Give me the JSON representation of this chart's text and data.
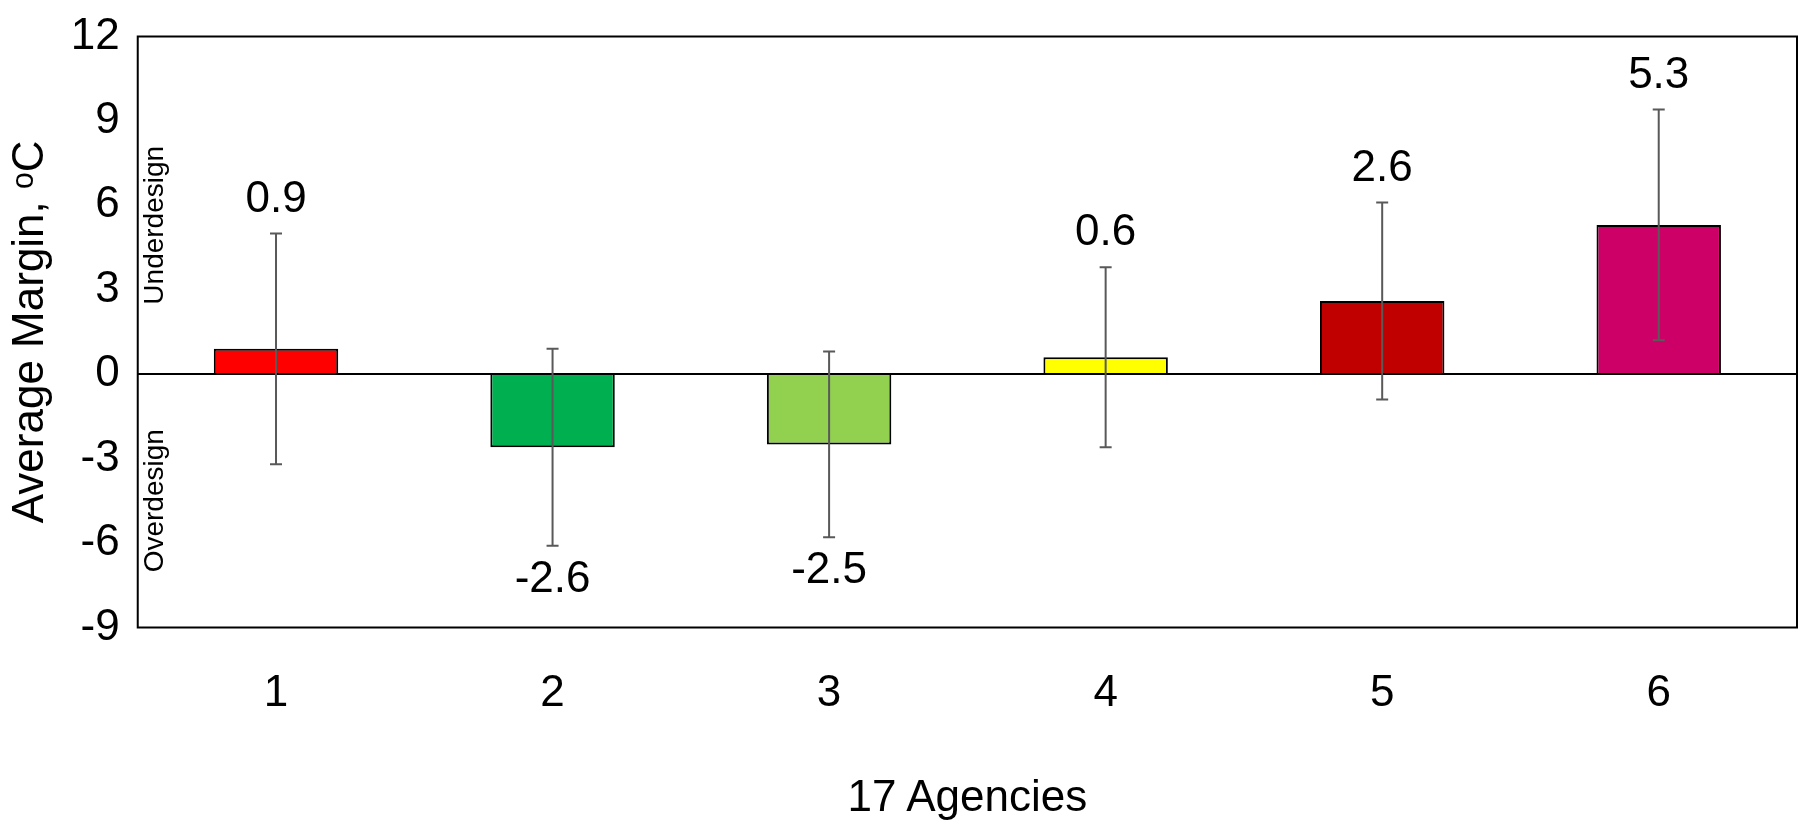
{
  "chart_data": {
    "type": "bar",
    "xlabel": "17 Agencies",
    "ylabel": "Average Margin, ᵒC",
    "categories": [
      "1",
      "2",
      "3",
      "4",
      "5",
      "6"
    ],
    "values": [
      0.9,
      -2.6,
      -2.5,
      0.6,
      2.6,
      5.3
    ],
    "colors": [
      "#ff0000",
      "#00b050",
      "#92d050",
      "#ffff00",
      "#c00000",
      "#cc0066"
    ],
    "errors": [
      [
        -3.2,
        5.0
      ],
      [
        -6.1,
        0.9
      ],
      [
        -5.8,
        0.8
      ],
      [
        -2.6,
        3.8
      ],
      [
        -0.9,
        6.1
      ],
      [
        1.2,
        9.4
      ]
    ],
    "ref_lines": [
      {
        "axis": "y",
        "value": 0,
        "color": "#000000"
      }
    ],
    "ylim": [
      -9,
      12
    ],
    "yticks": [
      -9,
      -6,
      -3,
      0,
      3,
      6,
      9,
      12
    ],
    "grid": false,
    "legend": false,
    "data_labels": true,
    "annotations": [
      "Underdesign",
      "Overdesign"
    ]
  }
}
